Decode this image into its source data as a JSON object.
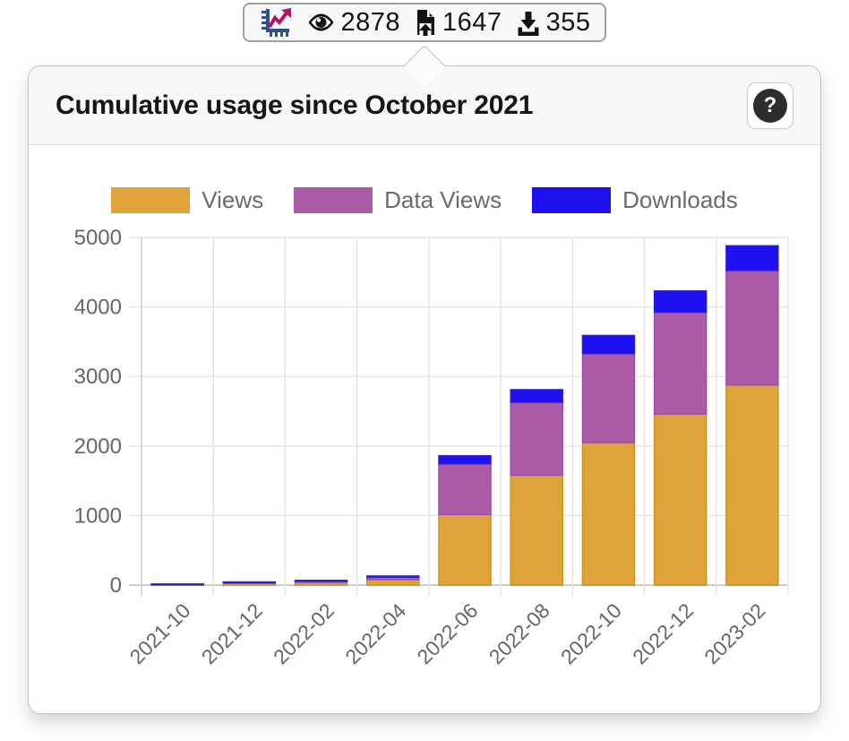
{
  "badge": {
    "metrics": [
      {
        "name": "views",
        "icon": "eye-icon",
        "value": "2878"
      },
      {
        "name": "data-views",
        "icon": "file-upload-icon",
        "value": "1647"
      },
      {
        "name": "downloads",
        "icon": "download-icon",
        "value": "355"
      }
    ]
  },
  "panel": {
    "title": "Cumulative usage since October 2021",
    "help_button_label": "?"
  },
  "chart_data": {
    "type": "bar",
    "stacked": true,
    "title": "Cumulative usage since October 2021",
    "xlabel": "",
    "ylabel": "",
    "categories": [
      "2021-10",
      "2021-12",
      "2022-02",
      "2022-04",
      "2022-06",
      "2022-08",
      "2022-10",
      "2022-12",
      "2023-02"
    ],
    "series": [
      {
        "name": "Views",
        "color": "#dfa33b",
        "border_color": "#cd9226",
        "values": [
          10,
          25,
          38,
          80,
          1015,
          1580,
          2050,
          2460,
          2878
        ]
      },
      {
        "name": "Data Views",
        "color": "#ac5ba6",
        "border_color": "#9a4fae",
        "values": [
          3,
          12,
          20,
          35,
          730,
          1050,
          1280,
          1465,
          1647
        ]
      },
      {
        "name": "Downloads",
        "color": "#1e10f0",
        "border_color": "#2b1fc8",
        "values": [
          2,
          8,
          10,
          15,
          115,
          180,
          260,
          305,
          355
        ]
      }
    ],
    "ylim": [
      0,
      5000
    ],
    "yticks": [
      0,
      1000,
      2000,
      3000,
      4000,
      5000
    ],
    "x_tick_rotation": -45,
    "grid": true,
    "legend_position": "top",
    "colors": {
      "gridline": "#e4e4e4",
      "axis_line": "#cdcdcd",
      "tick_label": "#666666"
    }
  }
}
